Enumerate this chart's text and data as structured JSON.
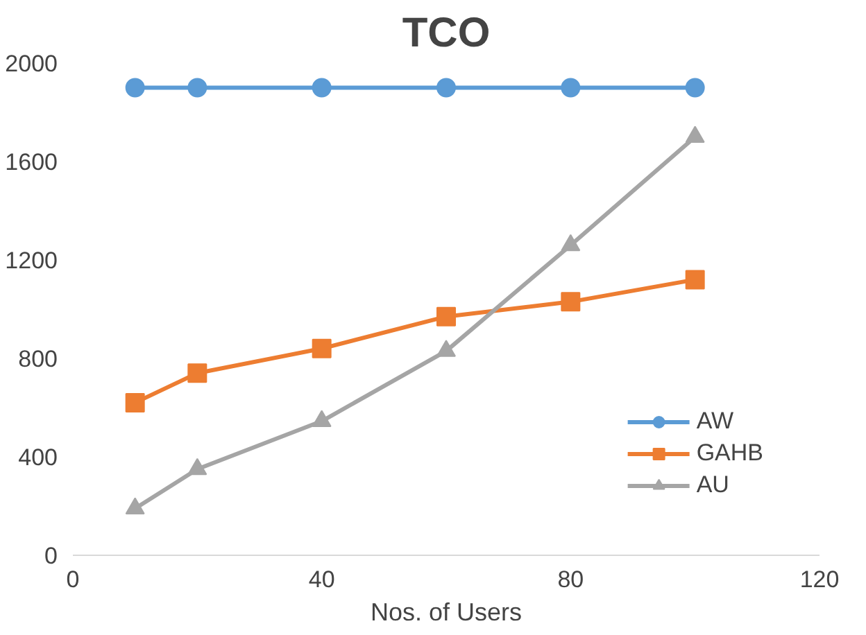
{
  "chart_data": {
    "type": "line",
    "title": "TCO",
    "xlabel": "Nos. of Users",
    "x": [
      10,
      20,
      40,
      60,
      80,
      100
    ],
    "xlim": [
      0,
      120
    ],
    "xticks": [
      0,
      40,
      80,
      120
    ],
    "ylim": [
      0,
      2000
    ],
    "yticks": [
      0,
      400,
      800,
      1200,
      1600,
      2000
    ],
    "grid": false,
    "legend": "right",
    "series": [
      {
        "name": "AW",
        "color": "#5b9bd5",
        "marker": "circle",
        "values": [
          1900,
          1900,
          1900,
          1900,
          1900,
          1900
        ]
      },
      {
        "name": "GAHB",
        "color": "#ed7d31",
        "marker": "square",
        "values": [
          620,
          740,
          840,
          970,
          1030,
          1120
        ]
      },
      {
        "name": "AU",
        "color": "#a5a5a5",
        "marker": "triangle",
        "values": [
          190,
          350,
          545,
          830,
          1260,
          1700
        ]
      }
    ]
  }
}
